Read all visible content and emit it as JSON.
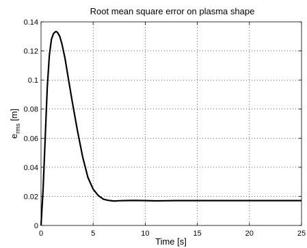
{
  "chart_data": {
    "type": "line",
    "title": "Root mean square error on plasma shape",
    "xlabel": "Time [s]",
    "ylabel": "e",
    "ylabel_subscript": "rms",
    "ylabel_unit": " [m]",
    "xlim": [
      0,
      25
    ],
    "ylim": [
      0,
      0.14
    ],
    "x_ticks": [
      "0",
      "5",
      "10",
      "15",
      "20",
      "25"
    ],
    "y_ticks": [
      "0",
      "0.02",
      "0.04",
      "0.06",
      "0.08",
      "0.1",
      "0.12",
      "0.14"
    ],
    "grid": true,
    "series": [
      {
        "x": [
          0,
          0.2,
          0.4,
          0.6,
          0.8,
          1.0,
          1.2,
          1.4,
          1.5,
          1.6,
          1.8,
          2.0,
          2.3,
          2.6,
          3.0,
          3.5,
          4.0,
          4.5,
          5.0,
          5.5,
          6.0,
          6.5,
          7.0,
          7.5,
          8.0,
          9.0,
          10.0,
          11.0,
          12.0,
          13.0,
          15.0,
          17.0,
          20.0,
          22.5,
          25.0
        ],
        "y": [
          0.0,
          0.025,
          0.06,
          0.095,
          0.117,
          0.128,
          0.132,
          0.1333,
          0.1332,
          0.1325,
          0.13,
          0.125,
          0.115,
          0.102,
          0.085,
          0.065,
          0.047,
          0.033,
          0.025,
          0.0205,
          0.018,
          0.0172,
          0.0168,
          0.017,
          0.0171,
          0.0172,
          0.0171,
          0.0169,
          0.017,
          0.0171,
          0.0171,
          0.0171,
          0.0171,
          0.0171,
          0.0171
        ]
      }
    ]
  }
}
